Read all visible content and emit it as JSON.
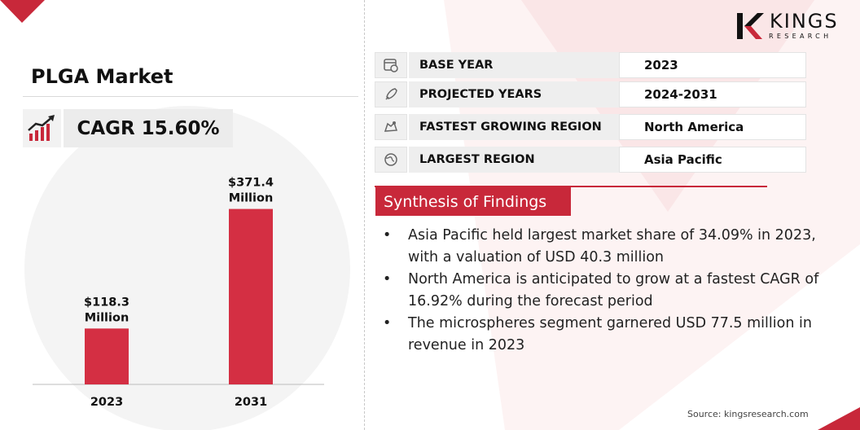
{
  "title": "PLGA Market",
  "cagr": "CAGR 15.60%",
  "logo": {
    "name": "KINGS",
    "sub": "RESEARCH"
  },
  "info_rows": [
    {
      "icon": "calendar-icon",
      "label": "BASE YEAR",
      "value": "2023"
    },
    {
      "icon": "rocket-icon",
      "label": "PROJECTED YEARS",
      "value": "2024-2031"
    },
    {
      "icon": "map-icon",
      "label": "FASTEST GROWING REGION",
      "value": "North America"
    },
    {
      "icon": "globe-icon",
      "label": "LARGEST REGION",
      "value": "Asia Pacific"
    }
  ],
  "synthesis": {
    "title": "Synthesis of Findings",
    "items": [
      "Asia Pacific held largest market share of 34.09% in 2023, with a valuation of USD 40.3 million",
      "North America is anticipated to grow at a fastest CAGR of 16.92% during the forecast period",
      "The microspheres segment garnered USD 77.5 million in revenue in 2023"
    ]
  },
  "source": "Source: kingsresearch.com",
  "colors": {
    "accent": "#c8283a",
    "bar": "#d42f43"
  },
  "chart_data": {
    "type": "bar",
    "categories": [
      "2023",
      "2031"
    ],
    "values": [
      118.3,
      371.4
    ],
    "value_labels": [
      "$118.3\nMillion",
      "$371.4\nMillion"
    ],
    "title": "",
    "xlabel": "",
    "ylabel": "",
    "grid": false
  }
}
